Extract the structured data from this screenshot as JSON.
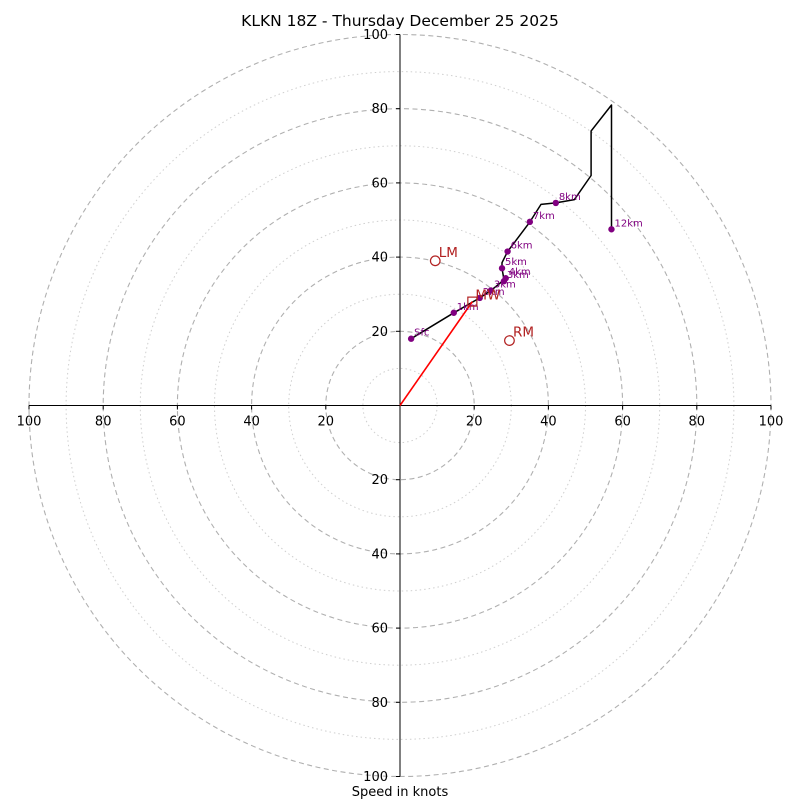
{
  "chart_data": {
    "type": "hodograph",
    "title": "KLKN 18Z - Thursday December 25 2025",
    "xlabel": "Speed in knots",
    "units": "knots",
    "max_speed": 100,
    "ring_major": [
      20,
      40,
      60,
      80,
      100
    ],
    "ring_minor": [
      10,
      30,
      50,
      70,
      90
    ],
    "tick_labels": {
      "left": [
        "100",
        "80",
        "60",
        "40",
        "20"
      ],
      "right": [
        "20",
        "40",
        "60",
        "80",
        "100"
      ],
      "top": [
        "20",
        "40",
        "60",
        "80",
        "100"
      ],
      "bottom": [
        "20",
        "40",
        "60",
        "80",
        "100"
      ]
    },
    "hodograph_trace": [
      [
        3,
        18
      ],
      [
        14.5,
        25
      ],
      [
        21.5,
        29
      ],
      [
        24.5,
        31
      ],
      [
        27,
        33
      ],
      [
        28,
        34
      ],
      [
        27.5,
        37
      ],
      [
        27.5,
        38.5
      ],
      [
        29,
        41.5
      ],
      [
        35,
        49.5
      ],
      [
        38,
        54.2
      ],
      [
        42,
        54.6
      ],
      [
        47,
        55.5
      ],
      [
        51.5,
        62
      ],
      [
        51.5,
        74
      ],
      [
        57,
        81
      ],
      [
        57,
        47.5
      ]
    ],
    "height_points": [
      {
        "label": "Sfc",
        "u": 3,
        "v": 18
      },
      {
        "label": "1km",
        "u": 14.5,
        "v": 25
      },
      {
        "label": "2km",
        "u": 21.5,
        "v": 29
      },
      {
        "label": "3km",
        "u": 24.5,
        "v": 31
      },
      {
        "label": "3km",
        "u": 28.0,
        "v": 33.5
      },
      {
        "label": "5km",
        "u": 27.5,
        "v": 37
      },
      {
        "label": "4km",
        "u": 28.5,
        "v": 34.3
      },
      {
        "label": "6km",
        "u": 29,
        "v": 41.5
      },
      {
        "label": "7km",
        "u": 35,
        "v": 49.5
      },
      {
        "label": "8km",
        "u": 42,
        "v": 54.6
      },
      {
        "label": "12km",
        "u": 57,
        "v": 47.5
      }
    ],
    "storm_motion": {
      "LM": {
        "label": "LM",
        "u": 9.5,
        "v": 39
      },
      "RM": {
        "label": "RM",
        "u": 29.5,
        "v": 17.5
      },
      "MW": {
        "label": "MW",
        "u": 19.5,
        "v": 28
      }
    },
    "mean_wind_vector": {
      "from": [
        0,
        0
      ],
      "to": [
        19.5,
        28
      ]
    },
    "colors": {
      "trace": "#000000",
      "points": "#800080",
      "storm": "#b22222",
      "vector": "#ff0000",
      "grid": "#b0b0b0"
    }
  }
}
